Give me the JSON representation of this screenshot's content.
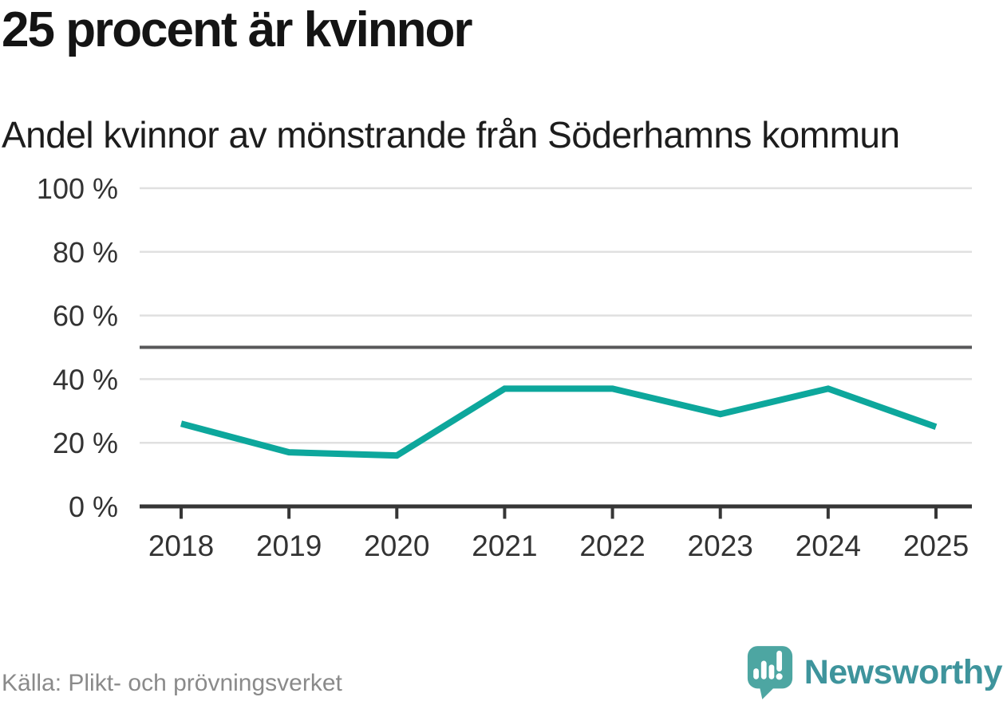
{
  "chart_data": {
    "type": "line",
    "title": "25 procent är kvinnor",
    "subtitle": "Andel kvinnor av mönstrande från Söderhamns kommun",
    "x": [
      "2018",
      "2019",
      "2020",
      "2021",
      "2022",
      "2023",
      "2024",
      "2025"
    ],
    "series": [
      {
        "name": "Andel kvinnor av mönstrande",
        "values": [
          26,
          17,
          16,
          37,
          37,
          29,
          37,
          25
        ]
      }
    ],
    "unit": "%",
    "ylim": [
      0,
      100
    ],
    "yticks": [
      {
        "value": 0,
        "label": "0 %"
      },
      {
        "value": 20,
        "label": "20 %"
      },
      {
        "value": 40,
        "label": "40 %"
      },
      {
        "value": 60,
        "label": "60 %"
      },
      {
        "value": 80,
        "label": "80 %"
      },
      {
        "value": 100,
        "label": "100 %"
      }
    ],
    "reference_line": {
      "value": 50
    },
    "grid": "horizontal",
    "legend": "none",
    "colors": {
      "line": "#0da79c",
      "reference_line": "#58585a",
      "axis": "#363636",
      "gridline": "#e0e0e0",
      "tick_label": "#333333"
    }
  },
  "footer": {
    "source": "Källa: Plikt- och prövningsverket",
    "brand": {
      "name": "Newsworthy",
      "logo_icon": "newsworthy-speech-bubble-bar-chart-icon",
      "text_color": "#3e949c",
      "mark_color": "#4da6a2"
    }
  }
}
